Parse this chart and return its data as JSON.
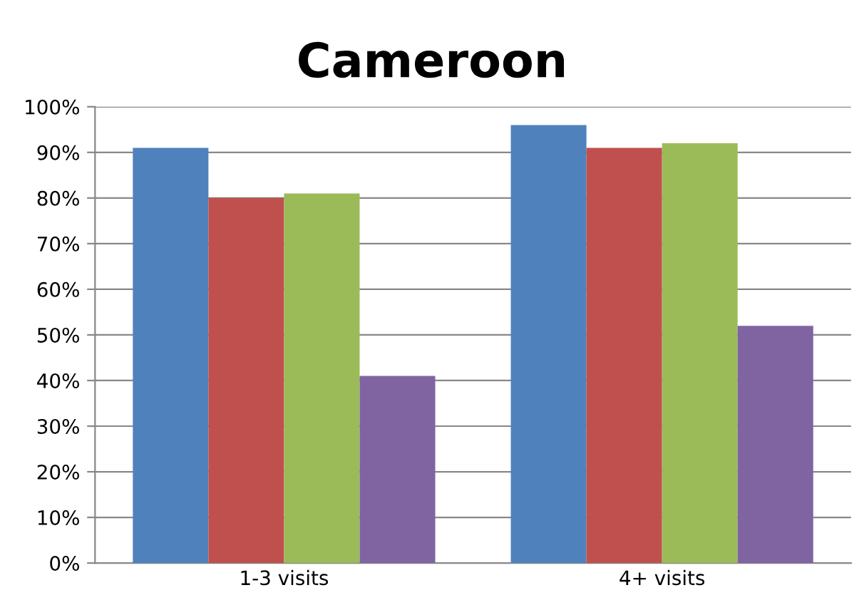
{
  "chart_data": {
    "type": "bar",
    "title": "Cameroon",
    "categories": [
      "1-3 visits",
      "4+ visits"
    ],
    "series": [
      {
        "color": "#4f81bd",
        "values": [
          91,
          96
        ]
      },
      {
        "color": "#c0504d",
        "values": [
          80,
          91
        ]
      },
      {
        "color": "#9bbb59",
        "values": [
          81,
          92
        ]
      },
      {
        "color": "#8064a2",
        "values": [
          41,
          52
        ]
      }
    ],
    "ylim": [
      0,
      100
    ],
    "yticks": [
      {
        "value": 0,
        "label": "0%"
      },
      {
        "value": 10,
        "label": "10%"
      },
      {
        "value": 20,
        "label": "20%"
      },
      {
        "value": 30,
        "label": "30%"
      },
      {
        "value": 40,
        "label": "40%"
      },
      {
        "value": 50,
        "label": "50%"
      },
      {
        "value": 60,
        "label": "60%"
      },
      {
        "value": 70,
        "label": "70%"
      },
      {
        "value": 80,
        "label": "80%"
      },
      {
        "value": 90,
        "label": "90%"
      },
      {
        "value": 100,
        "label": "100%"
      }
    ],
    "grid": "y",
    "legend": false
  }
}
